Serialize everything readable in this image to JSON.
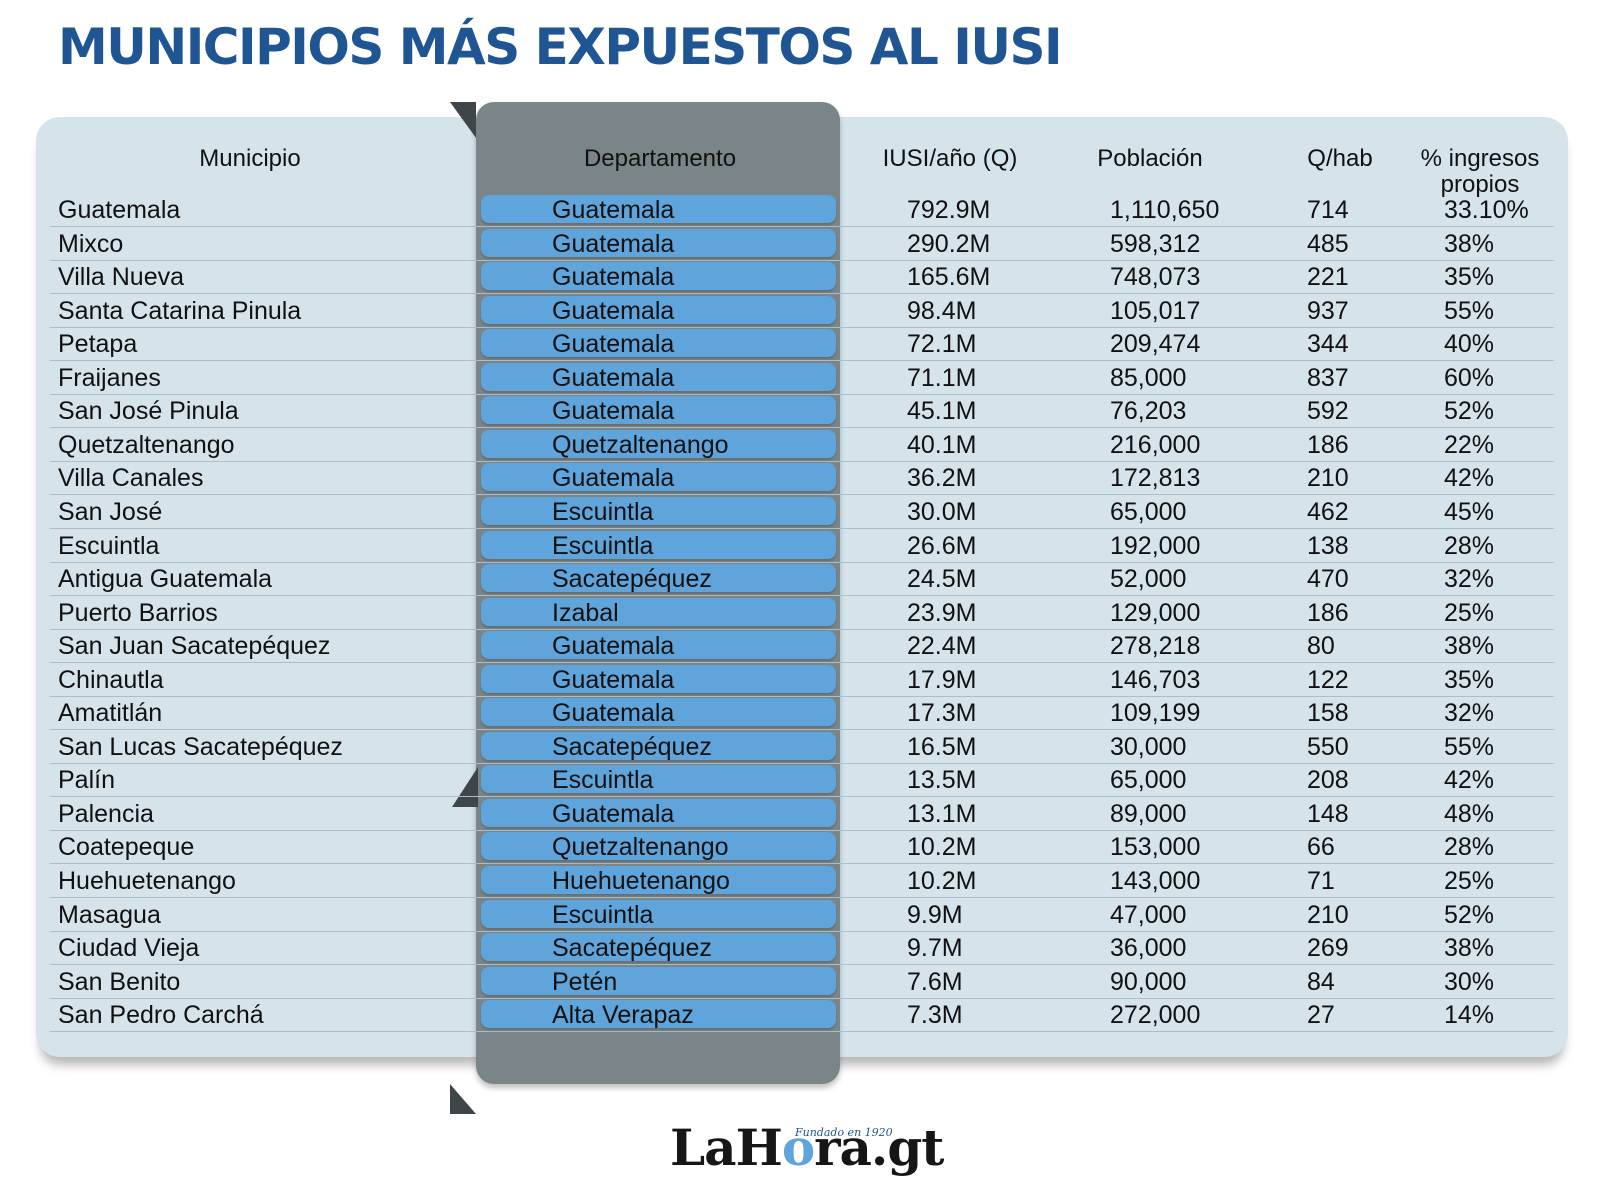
{
  "title": "MUNICIPIOS MÁS EXPUESTOS AL IUSI",
  "brand": {
    "logo": "LaHora.gt",
    "tagline": "Fundado en 1920",
    "accent": "#5fa4db"
  },
  "colors": {
    "title": "#1f5592",
    "panel": "#d5e4eb",
    "dept_column": "#7a8589",
    "dept_pill": "#5fa4db"
  },
  "chart_data": {
    "type": "table",
    "columns": [
      "Municipio",
      "Departamento",
      "IUSI/año (Q)",
      "Población",
      "Q/hab",
      "% ingresos propios"
    ],
    "rows": [
      [
        "Guatemala",
        "Guatemala",
        "792.9M",
        "1,110,650",
        "714",
        "33.10%"
      ],
      [
        "Mixco",
        "Guatemala",
        "290.2M",
        "598,312",
        "485",
        "38%"
      ],
      [
        "Villa Nueva",
        "Guatemala",
        "165.6M",
        "748,073",
        "221",
        "35%"
      ],
      [
        "Santa Catarina Pinula",
        "Guatemala",
        "98.4M",
        "105,017",
        "937",
        "55%"
      ],
      [
        "Petapa",
        "Guatemala",
        "72.1M",
        "209,474",
        "344",
        "40%"
      ],
      [
        "Fraijanes",
        "Guatemala",
        "71.1M",
        "85,000",
        "837",
        "60%"
      ],
      [
        "San José Pinula",
        "Guatemala",
        "45.1M",
        "76,203",
        "592",
        "52%"
      ],
      [
        "Quetzaltenango",
        "Quetzaltenango",
        "40.1M",
        "216,000",
        "186",
        "22%"
      ],
      [
        "Villa Canales",
        "Guatemala",
        "36.2M",
        "172,813",
        "210",
        "42%"
      ],
      [
        "San José",
        "Escuintla",
        "30.0M",
        "65,000",
        "462",
        "45%"
      ],
      [
        "Escuintla",
        "Escuintla",
        "26.6M",
        "192,000",
        "138",
        "28%"
      ],
      [
        "Antigua Guatemala",
        "Sacatepéquez",
        "24.5M",
        "52,000",
        "470",
        "32%"
      ],
      [
        "Puerto Barrios",
        "Izabal",
        "23.9M",
        "129,000",
        "186",
        "25%"
      ],
      [
        "San Juan Sacatepéquez",
        "Guatemala",
        "22.4M",
        "278,218",
        "80",
        "38%"
      ],
      [
        "Chinautla",
        "Guatemala",
        "17.9M",
        "146,703",
        "122",
        "35%"
      ],
      [
        "Amatitlán",
        "Guatemala",
        "17.3M",
        "109,199",
        "158",
        "32%"
      ],
      [
        "San Lucas Sacatepéquez",
        "Sacatepéquez",
        "16.5M",
        "30,000",
        "550",
        "55%"
      ],
      [
        "Palín",
        "Escuintla",
        "13.5M",
        "65,000",
        "208",
        "42%"
      ],
      [
        "Palencia",
        "Guatemala",
        "13.1M",
        "89,000",
        "148",
        "48%"
      ],
      [
        "Coatepeque",
        "Quetzaltenango",
        "10.2M",
        "153,000",
        "66",
        "28%"
      ],
      [
        "Huehuetenango",
        "Huehuetenango",
        "10.2M",
        "143,000",
        "71",
        "25%"
      ],
      [
        "Masagua",
        "Escuintla",
        "9.9M",
        "47,000",
        "210",
        "52%"
      ],
      [
        "Ciudad Vieja",
        "Sacatepéquez",
        "9.7M",
        "36,000",
        "269",
        "38%"
      ],
      [
        "San Benito",
        "Petén",
        "7.6M",
        "90,000",
        "84",
        "30%"
      ],
      [
        "San Pedro Carchá",
        "Alta Verapaz",
        "7.3M",
        "272,000",
        "27",
        "14%"
      ]
    ]
  }
}
